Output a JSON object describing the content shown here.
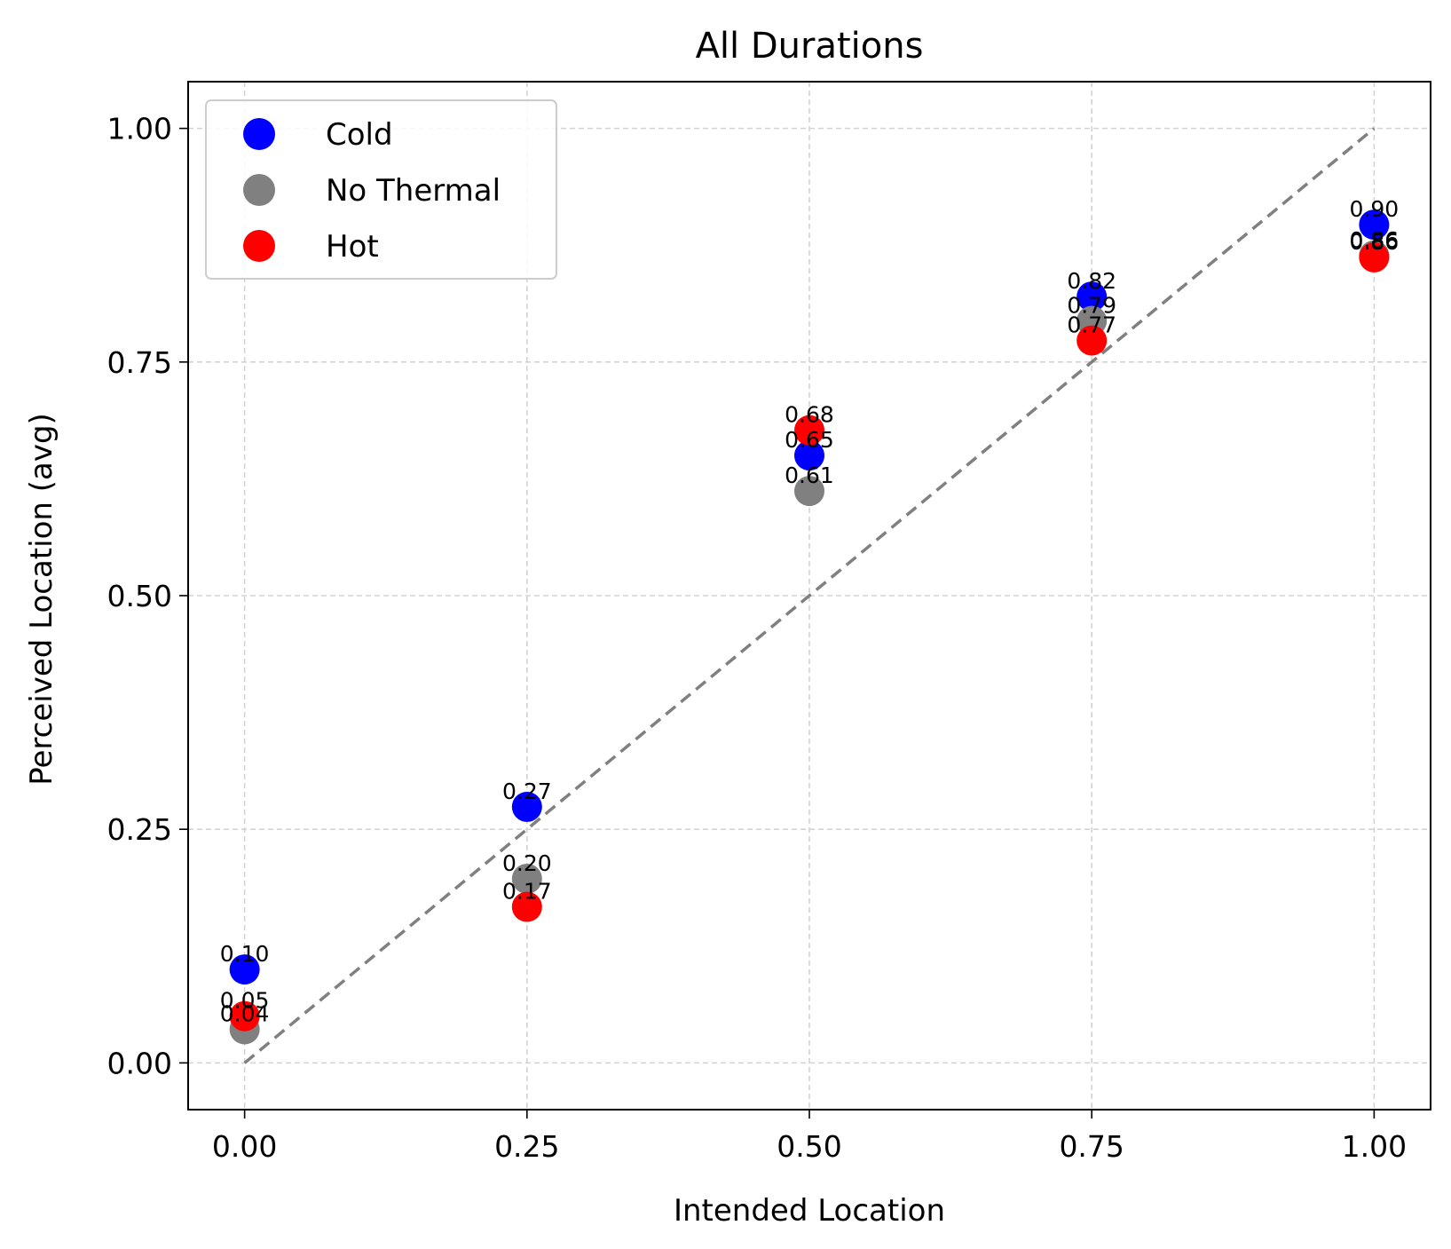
{
  "chart_data": {
    "type": "scatter",
    "title": "All Durations",
    "xlabel": "Intended Location",
    "ylabel": "Perceived Location (avg)",
    "xlim": [
      -0.05,
      1.05
    ],
    "ylim": [
      -0.05,
      1.05
    ],
    "xticks": [
      "0.00",
      "0.25",
      "0.50",
      "0.75",
      "1.00"
    ],
    "yticks": [
      "0.00",
      "0.25",
      "0.50",
      "0.75",
      "1.00"
    ],
    "grid": true,
    "legend_position": "top-left",
    "reference_line": {
      "style": "dashed",
      "color": "#808080",
      "from": [
        0,
        0
      ],
      "to": [
        1,
        1
      ]
    },
    "series": [
      {
        "name": "Cold",
        "color": "#0000ff",
        "x": [
          0.0,
          0.25,
          0.5,
          0.75,
          1.0
        ],
        "y": [
          0.1,
          0.274,
          0.65,
          0.82,
          0.897
        ],
        "labels": [
          "0.10",
          "0.27",
          "0.65",
          "0.82",
          "0.90"
        ]
      },
      {
        "name": "No Thermal",
        "color": "#808080",
        "x": [
          0.0,
          0.25,
          0.5,
          0.75,
          1.0
        ],
        "y": [
          0.036,
          0.197,
          0.612,
          0.794,
          0.864
        ],
        "labels": [
          "0.04",
          "0.20",
          "0.61",
          "0.79",
          "0.86"
        ]
      },
      {
        "name": "Hot",
        "color": "#ff0000",
        "x": [
          0.0,
          0.25,
          0.5,
          0.75,
          1.0
        ],
        "y": [
          0.05,
          0.167,
          0.677,
          0.773,
          0.862
        ],
        "labels": [
          "0.05",
          "0.17",
          "0.68",
          "0.77",
          "0.86"
        ]
      }
    ]
  }
}
